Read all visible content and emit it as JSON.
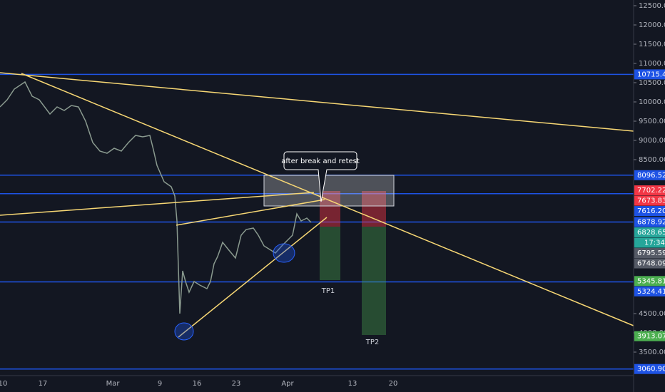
{
  "price_axis": {
    "ticks": [
      {
        "value": 12500,
        "label": "12500.00"
      },
      {
        "value": 12000,
        "label": "12000.00"
      },
      {
        "value": 11500,
        "label": "11500.00"
      },
      {
        "value": 11000,
        "label": "11000.00"
      },
      {
        "value": 10500,
        "label": "10500.00"
      },
      {
        "value": 10000,
        "label": "10000.00"
      },
      {
        "value": 9500,
        "label": "9500.00"
      },
      {
        "value": 9000,
        "label": "9000.00"
      },
      {
        "value": 8500,
        "label": "8500.00"
      },
      {
        "value": 4500,
        "label": "4500.00"
      },
      {
        "value": 4000,
        "label": "4000.00"
      },
      {
        "value": 3500,
        "label": "3500.00"
      }
    ],
    "tags": [
      {
        "value": 10715.43,
        "label": "10715.43",
        "color": "#1e53e5",
        "line": true
      },
      {
        "value": 8096.52,
        "label": "8096.52",
        "color": "#1e53e5",
        "line": true
      },
      {
        "value": 7702.22,
        "label": "7702.22",
        "color": "#f23645",
        "line": false
      },
      {
        "value": 7673.83,
        "label": "7673.83",
        "color": "#f23645",
        "line": false
      },
      {
        "value": 7616.2,
        "label": "7616.20",
        "color": "#1e53e5",
        "line": true
      },
      {
        "value": 6878.92,
        "label": "6878.92",
        "color": "#1e53e5",
        "line": true
      },
      {
        "value": 6828.65,
        "label": "6828.65",
        "color": "#26a69a",
        "line": false
      },
      {
        "value": 6795.59,
        "label": "6795.59",
        "color": "#555a66",
        "line": false
      },
      {
        "value": 6748.09,
        "label": "6748.09",
        "color": "#555a66",
        "line": false
      },
      {
        "value": 5345.81,
        "label": "5345.81",
        "color": "#4caf50",
        "line": false
      },
      {
        "value": 5324.41,
        "label": "5324.41",
        "color": "#1e53e5",
        "line": true
      },
      {
        "value": 3913.07,
        "label": "3913.07",
        "color": "#4caf50",
        "line": false
      },
      {
        "value": 3060.9,
        "label": "3060.90",
        "color": "#1e53e5",
        "line": true
      }
    ],
    "countdown": "17:34"
  },
  "time_axis": [
    "10",
    "17",
    "Mar",
    "9",
    "16",
    "23",
    "Apr",
    "13",
    "20"
  ],
  "annotations": {
    "callout": "after break and retest",
    "tp1": "TP1",
    "tp2": "TP2"
  }
}
